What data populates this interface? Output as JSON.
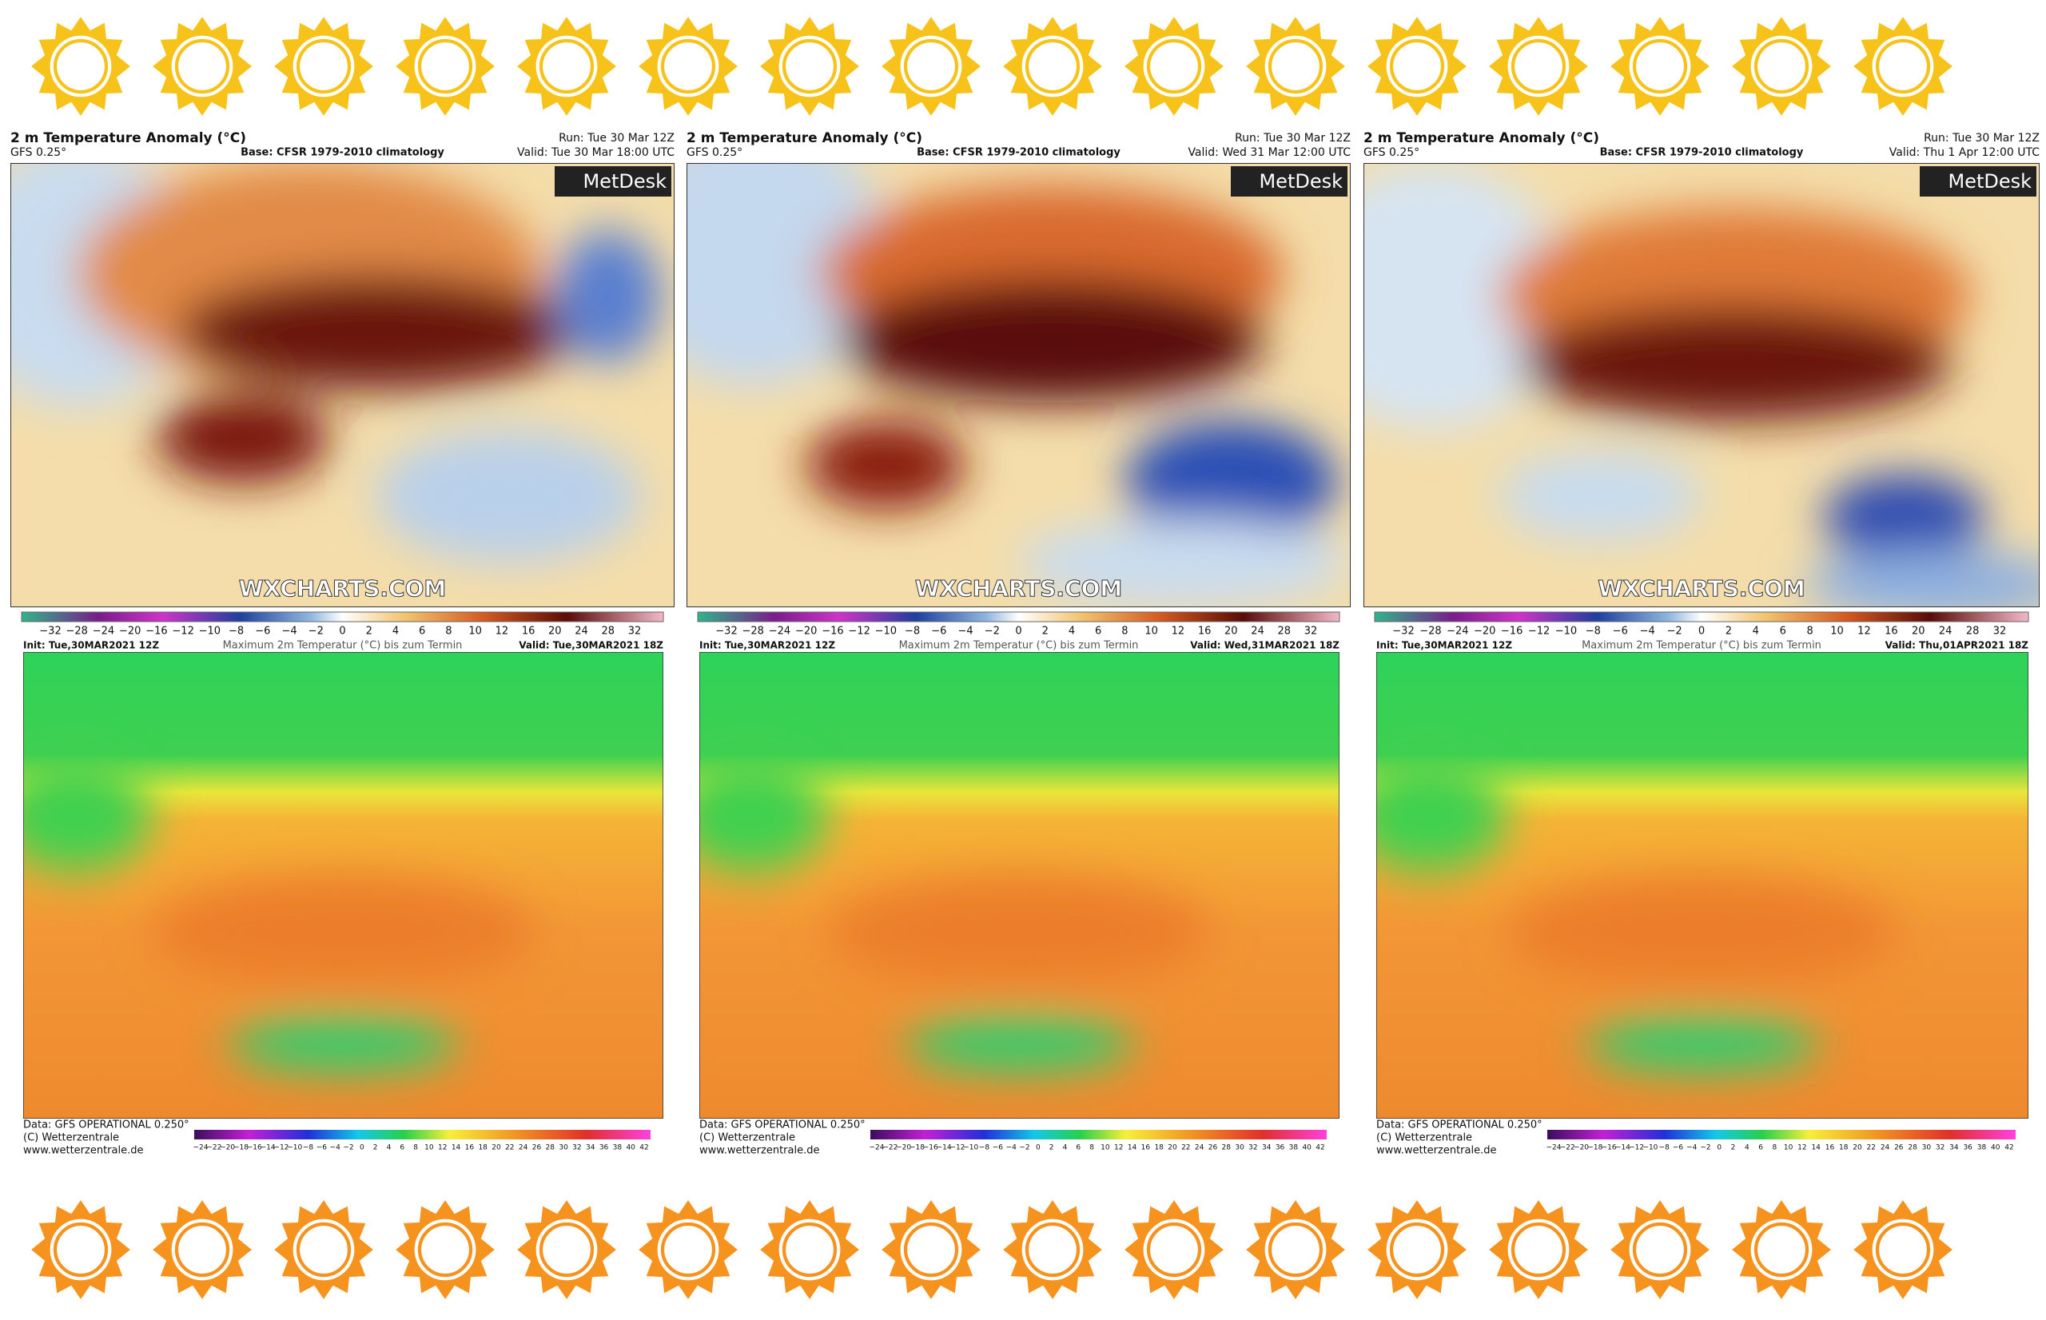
{
  "panels": [
    {
      "title": "2 m Temperature Anomaly (°C)",
      "model": "GFS 0.25°",
      "base": "Base: CFSR 1979-2010 climatology",
      "run": "Run: Tue 30 Mar 12Z",
      "valid": "Valid: Tue 30 Mar 18:00 UTC",
      "brand": "MetDesk",
      "watermark": "WXCHARTS.COM",
      "init": "Init: Tue,30MAR2021 12Z",
      "param": "Maximum 2m Temperatur (°C) bis zum Termin",
      "valid2": "Valid: Tue,30MAR2021 18Z",
      "source": "Data: GFS OPERATIONAL 0.250°",
      "copyright": "(C) Wetterzentrale",
      "url": "www.wetterzentrale.de"
    },
    {
      "title": "2 m Temperature Anomaly (°C)",
      "model": "GFS 0.25°",
      "base": "Base: CFSR 1979-2010 climatology",
      "run": "Run: Tue 30 Mar 12Z",
      "valid": "Valid: Wed 31 Mar 12:00 UTC",
      "brand": "MetDesk",
      "watermark": "WXCHARTS.COM",
      "init": "Init: Tue,30MAR2021 12Z",
      "param": "Maximum 2m Temperatur (°C) bis zum Termin",
      "valid2": "Valid: Wed,31MAR2021 18Z",
      "source": "Data: GFS OPERATIONAL 0.250°",
      "copyright": "(C) Wetterzentrale",
      "url": "www.wetterzentrale.de"
    },
    {
      "title": "2 m Temperature Anomaly (°C)",
      "model": "GFS 0.25°",
      "base": "Base: CFSR 1979-2010 climatology",
      "run": "Run: Tue 30 Mar 12Z",
      "valid": "Valid: Thu 1 Apr 12:00 UTC",
      "brand": "MetDesk",
      "watermark": "WXCHARTS.COM",
      "init": "Init: Tue,30MAR2021 12Z",
      "param": "Maximum 2m Temperatur (°C) bis zum Termin",
      "valid2": "Valid: Thu,01APR2021 18Z",
      "source": "Data: GFS OPERATIONAL 0.250°",
      "copyright": "(C) Wetterzentrale",
      "url": "www.wetterzentrale.de"
    }
  ],
  "anomaly_scale": [
    "−32",
    "−28",
    "−24",
    "−20",
    "−16",
    "−12",
    "−10",
    "−8",
    "−6",
    "−4",
    "−2",
    "0",
    "2",
    "4",
    "6",
    "8",
    "10",
    "12",
    "16",
    "20",
    "24",
    "28",
    "32"
  ],
  "max_temp_scale": [
    "−24",
    "−22",
    "−20",
    "−18",
    "−16",
    "−14",
    "−12",
    "−10",
    "−8",
    "−6",
    "−4",
    "−2",
    "0",
    "2",
    "4",
    "6",
    "8",
    "10",
    "12",
    "14",
    "16",
    "18",
    "20",
    "22",
    "24",
    "26",
    "28",
    "30",
    "32",
    "34",
    "36",
    "38",
    "40",
    "42"
  ]
}
